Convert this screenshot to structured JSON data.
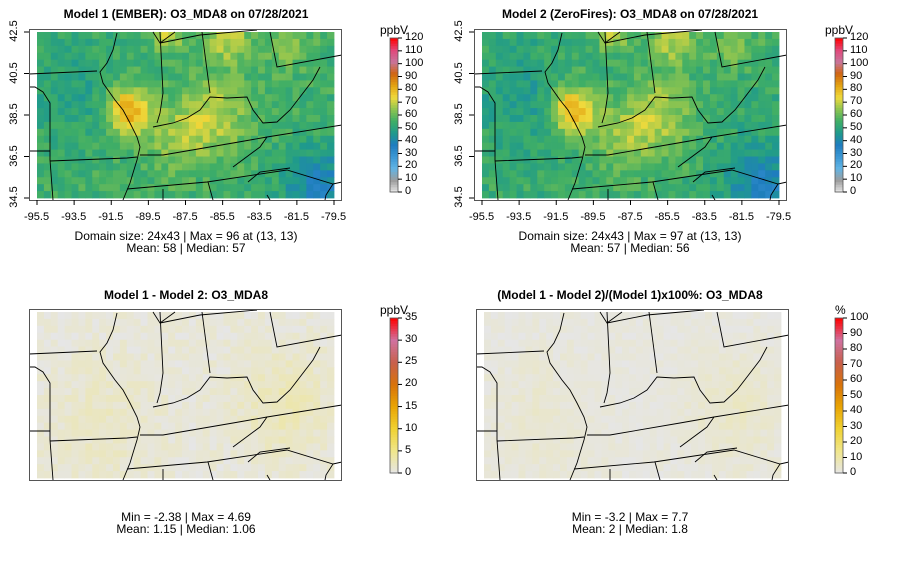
{
  "chart_data": [
    {
      "type": "heatmap",
      "title": "Model 1 (EMBER): O3_MDA8 on 07/28/2021",
      "variable": "O3_MDA8",
      "date": "07/28/2021",
      "x_ticks": [
        "-95.5",
        "-93.5",
        "-91.5",
        "-89.5",
        "-87.5",
        "-85.5",
        "-83.5",
        "-81.5",
        "-79.5"
      ],
      "y_ticks": [
        "34.5",
        "36.5",
        "38.5",
        "40.5",
        "42.5"
      ],
      "xlim": [
        -95.5,
        -79.5
      ],
      "ylim": [
        34.5,
        42.5
      ],
      "stats_line1": "Domain size: 24x43 | Max = 96 at (13, 13)",
      "stats_line2": "Mean: 58 |  Median: 57",
      "domain_size": "24x43",
      "max": 96,
      "max_at": [
        13,
        13
      ],
      "mean": 58,
      "median": 57,
      "colorbar": {
        "label": "ppbV",
        "range": [
          0,
          120
        ],
        "ticks": [
          "0",
          "10",
          "20",
          "30",
          "40",
          "50",
          "60",
          "70",
          "80",
          "90",
          "100",
          "110",
          "120"
        ]
      }
    },
    {
      "type": "heatmap",
      "title": "Model 2 (ZeroFires): O3_MDA8 on 07/28/2021",
      "variable": "O3_MDA8",
      "date": "07/28/2021",
      "x_ticks": [
        "-95.5",
        "-93.5",
        "-91.5",
        "-89.5",
        "-87.5",
        "-85.5",
        "-83.5",
        "-81.5",
        "-79.5"
      ],
      "y_ticks": [
        "34.5",
        "36.5",
        "38.5",
        "40.5",
        "42.5"
      ],
      "xlim": [
        -95.5,
        -79.5
      ],
      "ylim": [
        34.5,
        42.5
      ],
      "stats_line1": "Domain size: 24x43 | Max = 97 at (13, 13)",
      "stats_line2": "Mean: 57 |  Median: 56",
      "domain_size": "24x43",
      "max": 97,
      "max_at": [
        13,
        13
      ],
      "mean": 57,
      "median": 56,
      "colorbar": {
        "label": "ppbV",
        "range": [
          0,
          120
        ],
        "ticks": [
          "0",
          "10",
          "20",
          "30",
          "40",
          "50",
          "60",
          "70",
          "80",
          "90",
          "100",
          "110",
          "120"
        ]
      }
    },
    {
      "type": "heatmap",
      "title": "Model 1 - Model 2: O3_MDA8",
      "variable": "O3_MDA8",
      "stats_line1": "Min = -2.38 | Max = 4.69",
      "stats_line2": "Mean: 1.15 |  Median: 1.06",
      "min": -2.38,
      "max": 4.69,
      "mean": 1.15,
      "median": 1.06,
      "colorbar": {
        "label": "ppbV",
        "range": [
          0,
          35
        ],
        "ticks": [
          "0",
          "5",
          "10",
          "15",
          "20",
          "25",
          "30",
          "35"
        ]
      }
    },
    {
      "type": "heatmap",
      "title": "(Model 1 - Model 2)/(Model 1)x100%: O3_MDA8",
      "variable": "O3_MDA8",
      "stats_line1": "Min = -3.2 | Max = 7.7",
      "stats_line2": "Mean: 2 |  Median: 1.8",
      "min": -3.2,
      "max": 7.7,
      "mean": 2,
      "median": 1.8,
      "colorbar": {
        "label": "%",
        "range": [
          0,
          100
        ],
        "ticks": [
          "0",
          "10",
          "20",
          "30",
          "40",
          "50",
          "60",
          "70",
          "80",
          "90",
          "100"
        ]
      }
    }
  ],
  "colors": {
    "conc_scale": [
      "#e8e8e8",
      "#9c9c9c",
      "#62b4e4",
      "#3b97d4",
      "#1f7dbf",
      "#1f9a8c",
      "#3fae66",
      "#8cc450",
      "#f0da3c",
      "#e3a413",
      "#d06510",
      "#c8759c",
      "#e2487a",
      "#ff0000"
    ],
    "diff_scale": [
      "#e6e6e6",
      "#f0e68c",
      "#f0d232",
      "#e9a504",
      "#d8730a",
      "#c8604c",
      "#d072a0",
      "#ff0000"
    ],
    "boundary": "#000000",
    "frame": "#555555"
  }
}
